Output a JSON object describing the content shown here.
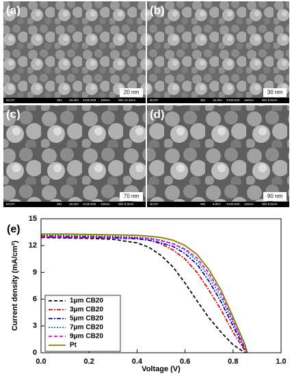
{
  "panels": [
    {
      "label": "(a)",
      "scale": "20 nm",
      "bar": [
        "NCNT",
        "SEI",
        "15.0kV",
        "X100,000",
        "100nm",
        "WD 10.3mm"
      ]
    },
    {
      "label": "(b)",
      "scale": "30 nm",
      "bar": [
        "NCNT",
        "SEI",
        "15.0kV",
        "X100,000",
        "100nm",
        "WD 8.0mm"
      ]
    },
    {
      "label": "(c)",
      "scale": "70 nm",
      "bar": [
        "NCNT",
        "SEI",
        "15.0kV",
        "X100,000",
        "100nm",
        "WD 8.0mm"
      ]
    },
    {
      "label": "(d)",
      "scale": "90 nm",
      "bar": [
        "NCNT",
        "SEI",
        "5.0kV",
        "X100,000",
        "100nm",
        "WD 8.0mm"
      ]
    }
  ],
  "chart_data": {
    "type": "line",
    "panel_label": "(e)",
    "xlabel": "Voltage (V)",
    "ylabel": "Current density (mA/cm²)",
    "x": [
      0,
      0.1,
      0.2,
      0.3,
      0.4,
      0.45,
      0.5,
      0.55,
      0.6,
      0.65,
      0.7,
      0.75,
      0.8,
      0.85,
      0.86
    ],
    "series": [
      {
        "name": "1μm CB20",
        "color": "#000000",
        "dash": "dashed",
        "values": [
          12.9,
          12.85,
          12.8,
          12.7,
          12.3,
          11.8,
          10.9,
          9.6,
          7.8,
          5.8,
          3.9,
          2.3,
          0.9,
          0,
          null
        ]
      },
      {
        "name": "3μm CB20",
        "color": "#e00000",
        "dash": "dashdot",
        "values": [
          13.1,
          13.05,
          13.0,
          12.95,
          12.8,
          12.6,
          12.2,
          11.5,
          10.5,
          9.0,
          7.0,
          4.8,
          2.3,
          0.2,
          0
        ]
      },
      {
        "name": "5μm CB20",
        "color": "#0000cc",
        "dash": "dashdot",
        "values": [
          12.95,
          12.9,
          12.9,
          12.85,
          12.75,
          12.6,
          12.3,
          11.9,
          11.1,
          9.9,
          8.0,
          5.7,
          3.0,
          0.3,
          0
        ]
      },
      {
        "name": "7μm CB20",
        "color": "#008080",
        "dash": "dotted",
        "values": [
          13.2,
          13.15,
          13.1,
          13.05,
          12.95,
          12.85,
          12.6,
          12.2,
          11.5,
          10.3,
          8.5,
          6.2,
          3.4,
          0.4,
          0
        ]
      },
      {
        "name": "9μm CB20",
        "color": "#e000e0",
        "dash": "dashed",
        "values": [
          13.0,
          12.95,
          12.9,
          12.9,
          12.85,
          12.75,
          12.55,
          12.2,
          11.6,
          10.6,
          8.9,
          6.6,
          3.6,
          0.5,
          0
        ]
      },
      {
        "name": "Pt",
        "color": "#808000",
        "dash": "solid",
        "values": [
          13.3,
          13.3,
          13.25,
          13.2,
          13.15,
          13.05,
          12.9,
          12.6,
          12.0,
          11.0,
          9.3,
          7.0,
          4.0,
          0.9,
          0
        ]
      }
    ],
    "xlim": [
      0,
      1
    ],
    "ylim": [
      0,
      15
    ],
    "xticks": [
      {
        "value": 0,
        "label": "0.0"
      },
      0.2,
      0.4,
      0.6,
      0.8,
      {
        "value": 1,
        "label": "1.0"
      }
    ],
    "yticks": [
      0,
      3,
      6,
      9,
      12,
      15
    ],
    "legend": "lower left"
  }
}
